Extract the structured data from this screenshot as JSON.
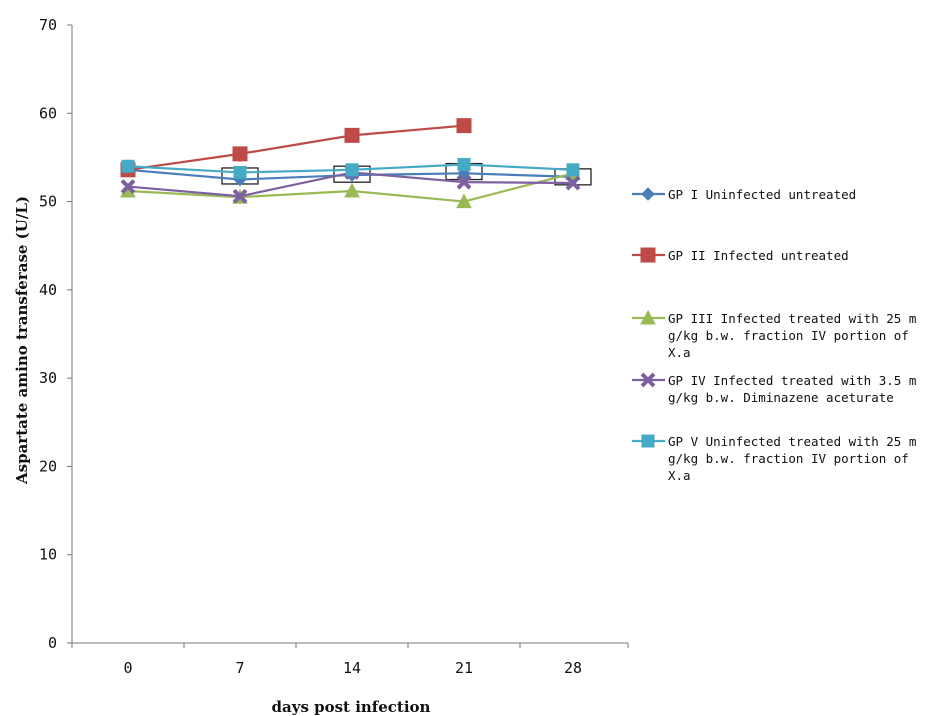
{
  "chart_data": {
    "type": "line",
    "title": "",
    "xlabel": "days post infection",
    "ylabel": "Aspartate amino transferase (U/L)",
    "x": [
      "0",
      "7",
      "14",
      "21",
      "28"
    ],
    "ylim": [
      0,
      70
    ],
    "yticks": [
      "0",
      "10",
      "20",
      "30",
      "40",
      "50",
      "60",
      "70"
    ],
    "grid": false,
    "legend_position": "right",
    "series": [
      {
        "name": "GP I Uninfected untreated",
        "values": [
          53.6,
          52.5,
          53.0,
          53.2,
          52.8
        ],
        "color": "#4a7ebb",
        "marker": "diamond"
      },
      {
        "name": "GP II Infected untreated",
        "values": [
          53.6,
          55.4,
          57.5,
          58.6,
          null
        ],
        "color": "#be4b48",
        "marker": "square"
      },
      {
        "name": "GP III Infected treated with 25 mg/kg b.w. fraction IV portion of X.a",
        "values": [
          51.2,
          50.5,
          51.2,
          50.0,
          53.2
        ],
        "color": "#98b954",
        "marker": "triangle"
      },
      {
        "name": "GP IV Infected treated with 3.5 mg/kg b.w. Diminazene aceturate",
        "values": [
          51.7,
          50.6,
          53.3,
          52.2,
          52.1
        ],
        "color": "#7d60a0",
        "marker": "x"
      },
      {
        "name": "GP V Uninfected treated with 25 mg/kg b.w. fraction IV portion of X.a",
        "values": [
          54.0,
          53.3,
          53.6,
          54.2,
          53.6
        ],
        "color": "#46aac5",
        "marker": "star-square"
      }
    ],
    "legend_lines": [
      [
        "GP I Uninfected untreated"
      ],
      [
        "GP II Infected untreated"
      ],
      [
        "GP III Infected treated with 25 m",
        "g/kg b.w. fraction IV portion of",
        "X.a"
      ],
      [
        "GP IV Infected treated with 3.5 m",
        "g/kg b.w. Diminazene aceturate"
      ],
      [
        "GP V Uninfected treated with 25 m",
        "g/kg b.w. fraction IV portion of",
        "X.a"
      ]
    ],
    "error_box_values": [
      52.9,
      53.1,
      53.4,
      52.8
    ]
  }
}
